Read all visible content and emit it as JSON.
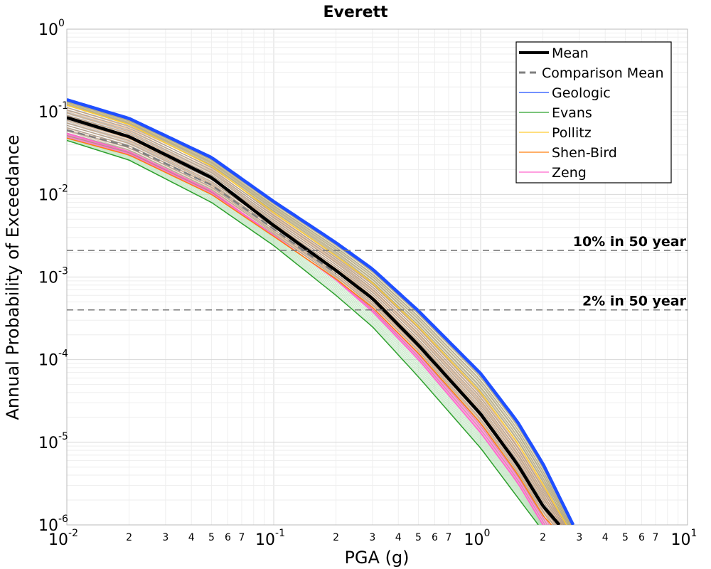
{
  "chart_data": {
    "type": "line",
    "title": "Everett",
    "xlabel": "PGA (g)",
    "ylabel": "Annual Probability of Exceedance",
    "x_scale": "log",
    "y_scale": "log",
    "xlim": [
      0.01,
      10
    ],
    "ylim": [
      1e-06,
      1
    ],
    "x_major_ticks": [
      {
        "base": "10",
        "exp": "-2",
        "value": 0.01
      },
      {
        "base": "10",
        "exp": "-1",
        "value": 0.1
      },
      {
        "base": "10",
        "exp": "0",
        "value": 1
      },
      {
        "base": "10",
        "exp": "1",
        "value": 10
      }
    ],
    "x_minor_tick_labels": [
      "2",
      "3",
      "4",
      "5",
      "6",
      "7"
    ],
    "y_major_ticks": [
      {
        "base": "10",
        "exp": "0",
        "value": 1
      },
      {
        "base": "10",
        "exp": "-1",
        "value": 0.1
      },
      {
        "base": "10",
        "exp": "-2",
        "value": 0.01
      },
      {
        "base": "10",
        "exp": "-3",
        "value": 0.001
      },
      {
        "base": "10",
        "exp": "-4",
        "value": 0.0001
      },
      {
        "base": "10",
        "exp": "-5",
        "value": 1e-05
      },
      {
        "base": "10",
        "exp": "-6",
        "value": 1e-06
      }
    ],
    "grid": true,
    "legend_position": "top-right",
    "series": [
      {
        "name": "Mean",
        "color": "#000000",
        "style": "solid",
        "x": [
          0.01,
          0.02,
          0.05,
          0.1,
          0.2,
          0.3,
          0.5,
          1.0,
          1.5,
          2.0,
          2.4
        ],
        "y": [
          0.085,
          0.05,
          0.016,
          0.0042,
          0.0012,
          0.00055,
          0.00015,
          2.2e-05,
          5.5e-06,
          1.7e-06,
          1e-06
        ]
      },
      {
        "name": "Comparison Mean",
        "color": "#7f7f7f",
        "style": "dashed",
        "x": [
          0.01,
          0.02,
          0.05,
          0.1,
          0.2
        ],
        "y": [
          0.06,
          0.038,
          0.013,
          0.0038,
          0.0011
        ]
      },
      {
        "name": "Geologic",
        "color": "#1f4fff",
        "style": "solid",
        "x": [
          0.01,
          0.02,
          0.05,
          0.1,
          0.2,
          0.3,
          0.5,
          1.0,
          1.5,
          2.0,
          2.8
        ],
        "y": [
          0.14,
          0.083,
          0.028,
          0.0082,
          0.0026,
          0.00125,
          0.00039,
          6.8e-05,
          1.8e-05,
          5.5e-06,
          1e-06
        ]
      },
      {
        "name": "Evans",
        "color": "#2ca02c",
        "style": "solid",
        "x": [
          0.01,
          0.02,
          0.05,
          0.1,
          0.2,
          0.3,
          0.5,
          1.0,
          1.5,
          1.9
        ],
        "y": [
          0.045,
          0.026,
          0.008,
          0.0024,
          0.0006,
          0.00025,
          6.2e-05,
          8.5e-06,
          2.2e-06,
          1e-06
        ]
      },
      {
        "name": "Pollitz",
        "color": "#ffcc33",
        "style": "solid",
        "x": [
          0.01,
          0.02,
          0.05,
          0.1,
          0.2,
          0.3,
          0.5,
          1.0,
          1.5,
          2.0,
          2.6
        ],
        "y": [
          0.12,
          0.07,
          0.022,
          0.006,
          0.0018,
          0.00085,
          0.00025,
          4e-05,
          1e-05,
          3.1e-06,
          1e-06
        ]
      },
      {
        "name": "Shen-Bird",
        "color": "#ff7f0e",
        "style": "solid",
        "x": [
          0.01,
          0.02,
          0.05,
          0.1,
          0.2,
          0.3,
          0.5,
          1.0,
          1.5,
          2.0,
          2.2
        ],
        "y": [
          0.048,
          0.03,
          0.01,
          0.0031,
          0.00095,
          0.00043,
          0.00012,
          1.7e-05,
          4.2e-06,
          1.3e-06,
          1e-06
        ]
      },
      {
        "name": "Zeng",
        "color": "#ff66cc",
        "style": "solid",
        "x": [
          0.01,
          0.02,
          0.05,
          0.1,
          0.2,
          0.3,
          0.5,
          1.0,
          1.5,
          2.0
        ],
        "y": [
          0.055,
          0.033,
          0.011,
          0.0032,
          0.00092,
          0.00038,
          0.0001,
          1.3e-05,
          3.3e-06,
          1e-06
        ]
      }
    ],
    "reference_lines": [
      {
        "label": "10% in 50 year",
        "y": 0.0021
      },
      {
        "label": "2% in 50 year",
        "y": 0.0004
      }
    ]
  }
}
